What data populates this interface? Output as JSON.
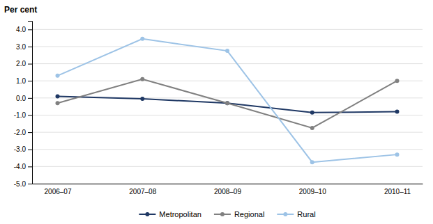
{
  "chart_data": {
    "type": "line",
    "ylabel": "Per cent",
    "categories": [
      "2006–07",
      "2007–08",
      "2008–09",
      "2009–10",
      "2010–11"
    ],
    "series": [
      {
        "name": "Metropolitan",
        "color": "#1F3864",
        "values": [
          0.1,
          -0.05,
          -0.3,
          -0.85,
          -0.8
        ]
      },
      {
        "name": "Regional",
        "color": "#808080",
        "values": [
          -0.3,
          1.1,
          -0.3,
          -1.75,
          1.0
        ]
      },
      {
        "name": "Rural",
        "color": "#9DC3E6",
        "values": [
          1.3,
          3.45,
          2.75,
          -3.75,
          -3.3
        ]
      }
    ],
    "ylim": [
      -5.0,
      4.5
    ],
    "yticks": [
      {
        "value": -5.0,
        "label": "-5.0"
      },
      {
        "value": -4.0,
        "label": "-4.0"
      },
      {
        "value": -3.0,
        "label": "-3.0"
      },
      {
        "value": -2.0,
        "label": "-2.0"
      },
      {
        "value": -1.0,
        "label": "-1.0"
      },
      {
        "value": 0.0,
        "label": "0.0"
      },
      {
        "value": 1.0,
        "label": "1.0"
      },
      {
        "value": 2.0,
        "label": "2.0"
      },
      {
        "value": 3.0,
        "label": "3.0"
      },
      {
        "value": 4.0,
        "label": "4.0"
      }
    ],
    "grid": true,
    "legend": "bottom",
    "marker": "circle"
  }
}
